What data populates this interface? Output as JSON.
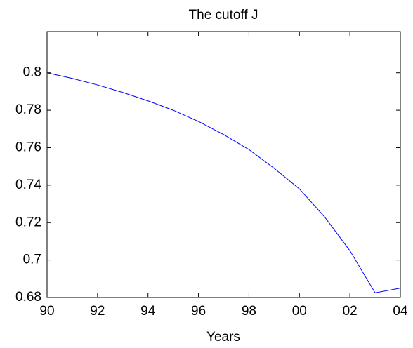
{
  "chart_data": {
    "type": "line",
    "title": "The cutoff J",
    "xlabel": "Years",
    "x": [
      1990,
      1991,
      1992,
      1993,
      1994,
      1995,
      1996,
      1997,
      1998,
      1999,
      2000,
      2001,
      2002,
      2003,
      2004
    ],
    "series": [
      {
        "color": "#0000ff",
        "values": [
          0.8,
          0.797,
          0.7935,
          0.7895,
          0.785,
          0.78,
          0.774,
          0.767,
          0.759,
          0.749,
          0.738,
          0.723,
          0.705,
          0.6825,
          0.685
        ]
      }
    ],
    "xlim": [
      1990,
      2004
    ],
    "xticks": [
      {
        "value": 1990,
        "label": "90"
      },
      {
        "value": 1992,
        "label": "92"
      },
      {
        "value": 1994,
        "label": "94"
      },
      {
        "value": 1996,
        "label": "96"
      },
      {
        "value": 1998,
        "label": "98"
      },
      {
        "value": 2000,
        "label": "00"
      },
      {
        "value": 2002,
        "label": "02"
      },
      {
        "value": 2004,
        "label": "04"
      }
    ],
    "ylim": [
      0.68,
      0.822
    ],
    "yticks": [
      0.68,
      0.7,
      0.72,
      0.74,
      0.76,
      0.78,
      0.8
    ],
    "grid": false
  }
}
